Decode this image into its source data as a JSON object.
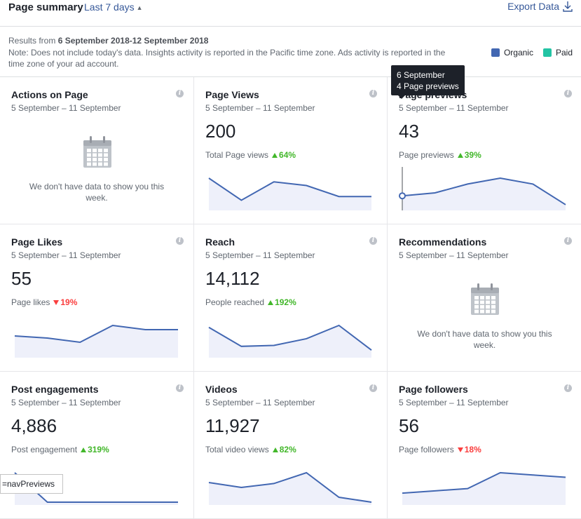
{
  "header": {
    "title": "Page summary",
    "range": "Last 7 days",
    "export": "Export Data"
  },
  "info": {
    "results_prefix": "Results from ",
    "results_range": "6 September 2018-12 September 2018",
    "note": "Note: Does not include today's data. Insights activity is reported in the Pacific time zone. Ads activity is reported in the time zone of your ad account.",
    "legend": [
      {
        "label": "Organic",
        "color": "#4267b2"
      },
      {
        "label": "Paid",
        "color": "#23c4a4"
      }
    ]
  },
  "colors": {
    "line": "#4267b2",
    "fill": "#eef0fa",
    "up": "#42b72a",
    "down": "#fa3e3e"
  },
  "cards": [
    {
      "title": "Actions on Page",
      "date": "5 September – 11 September",
      "nodata": "We don't have data to show you this week."
    },
    {
      "title": "Page Views",
      "date": "5 September – 11 September",
      "value": "200",
      "sub": "Total Page views",
      "change": "64%",
      "direction": "up",
      "series": [
        8,
        2,
        7,
        6,
        3,
        3
      ]
    },
    {
      "title": "Page previews",
      "date": "5 September – 11 September",
      "value": "43",
      "sub": "Page previews",
      "change": "39%",
      "direction": "up",
      "series": [
        4,
        5,
        8,
        10,
        8,
        1
      ]
    },
    {
      "title": "Page Likes",
      "date": "5 September – 11 September",
      "value": "55",
      "sub": "Page likes",
      "change": "19%",
      "direction": "down",
      "series": [
        9,
        8,
        6,
        14,
        12,
        12
      ]
    },
    {
      "title": "Reach",
      "date": "5 September – 11 September",
      "value": "14,112",
      "sub": "People reached",
      "change": "192%",
      "direction": "up",
      "series": [
        2900,
        900,
        1000,
        1700,
        3100,
        500
      ]
    },
    {
      "title": "Recommendations",
      "date": "5 September – 11 September",
      "nodata": "We don't have data to show you this week."
    },
    {
      "title": "Post engagements",
      "date": "5 September – 11 September",
      "value": "4,886",
      "sub": "Post engagement",
      "change": "319%",
      "direction": "up",
      "series": [
        700,
        0,
        0,
        0,
        0,
        0
      ]
    },
    {
      "title": "Videos",
      "date": "5 September – 11 September",
      "value": "11,927",
      "sub": "Total video views",
      "change": "82%",
      "direction": "up",
      "series": [
        2000,
        1500,
        1900,
        3000,
        500,
        0
      ]
    },
    {
      "title": "Page followers",
      "date": "5 September – 11 September",
      "value": "56",
      "sub": "Page followers",
      "change": "18%",
      "direction": "down",
      "series": [
        4,
        5,
        6,
        13,
        12,
        11
      ]
    }
  ],
  "tooltip": {
    "line1": "6 September",
    "line2": "4 Page previews"
  },
  "statusbar": "=navPreviews"
}
